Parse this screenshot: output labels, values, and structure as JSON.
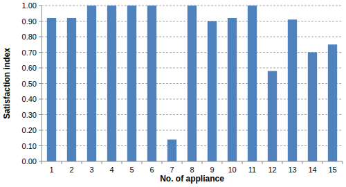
{
  "chart_data": {
    "type": "bar",
    "x_label": "No. of appliance",
    "y_label": "Satisfaction index",
    "categories": [
      "1",
      "2",
      "3",
      "4",
      "5",
      "6",
      "7",
      "8",
      "9",
      "10",
      "11",
      "12",
      "13",
      "14",
      "15"
    ],
    "values": [
      0.92,
      0.92,
      1.0,
      1.0,
      1.0,
      1.0,
      0.14,
      1.0,
      0.9,
      0.92,
      1.0,
      0.58,
      0.91,
      0.7,
      0.75
    ],
    "color": "#4f81bd",
    "ylim": [
      0,
      1
    ],
    "yticks": [
      {
        "value": 0,
        "label": "0.00"
      },
      {
        "value": 0.1,
        "label": "0.10"
      },
      {
        "value": 0.2,
        "label": "0.20"
      },
      {
        "value": 0.3,
        "label": "0.30"
      },
      {
        "value": 0.4,
        "label": "0.40"
      },
      {
        "value": 0.5,
        "label": "0.50"
      },
      {
        "value": 0.6,
        "label": "0.60"
      },
      {
        "value": 0.7,
        "label": "0.70"
      },
      {
        "value": 0.8,
        "label": "0.80"
      },
      {
        "value": 0.9,
        "label": "0.90"
      },
      {
        "value": 1,
        "label": "1.00"
      }
    ],
    "grid": true
  }
}
